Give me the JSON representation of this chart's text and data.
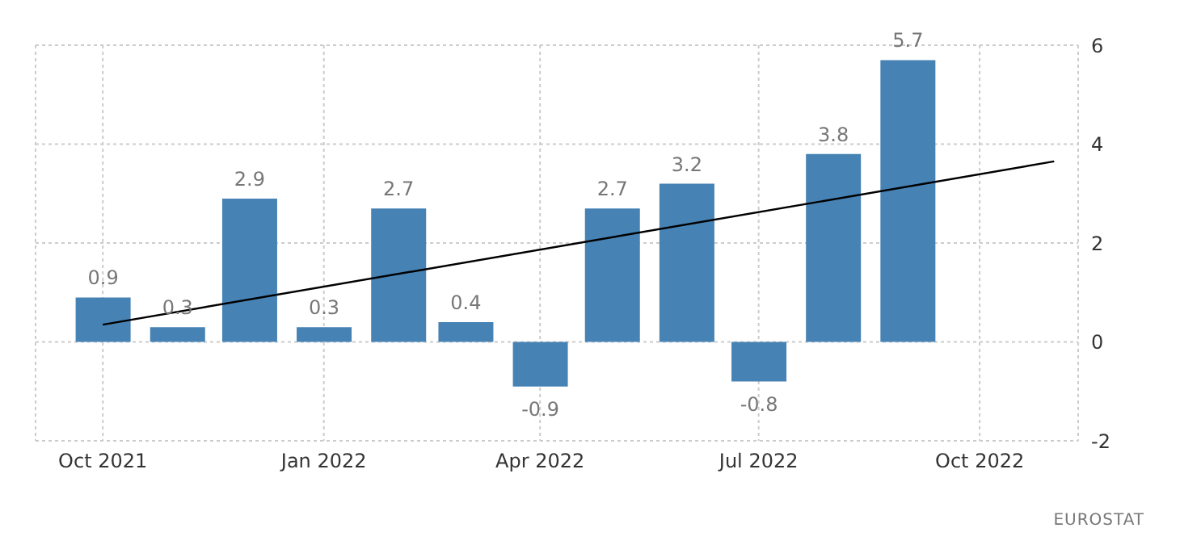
{
  "chart_data": {
    "type": "bar",
    "x": [
      "2021-10",
      "2021-11",
      "2021-12",
      "2022-01",
      "2022-02",
      "2022-03",
      "2022-04",
      "2022-05",
      "2022-06",
      "2022-07",
      "2022-08",
      "2022-09"
    ],
    "series": [
      {
        "color": "#4682b4",
        "values": [
          0.9,
          0.3,
          2.9,
          0.3,
          2.7,
          0.4,
          -0.9,
          2.7,
          3.2,
          -0.8,
          3.8,
          5.7
        ],
        "value_labels": [
          "0.9",
          "0.3",
          "2.9",
          "0.3",
          "2.7",
          "0.4",
          "-0.9",
          "2.7",
          "3.2",
          "-0.8",
          "3.8",
          "5.7"
        ]
      },
      {
        "type": "line",
        "color": "#000000",
        "x": [
          "2021-10",
          "2022-11"
        ],
        "values": [
          0.35,
          3.65
        ]
      }
    ],
    "xlim": [
      "2021-09-03",
      "2022-11-11"
    ],
    "xticks": [
      {
        "value": "2021-10",
        "label": "Oct 2021"
      },
      {
        "value": "2022-01",
        "label": "Jan 2022"
      },
      {
        "value": "2022-04",
        "label": "Apr 2022"
      },
      {
        "value": "2022-07",
        "label": "Jul 2022"
      },
      {
        "value": "2022-10",
        "label": "Oct 2022"
      }
    ],
    "ylim": [
      -2,
      6
    ],
    "yticks": [
      -2,
      0,
      2,
      4,
      6
    ],
    "grid": true,
    "annotations": [
      "EUROSTAT"
    ]
  }
}
